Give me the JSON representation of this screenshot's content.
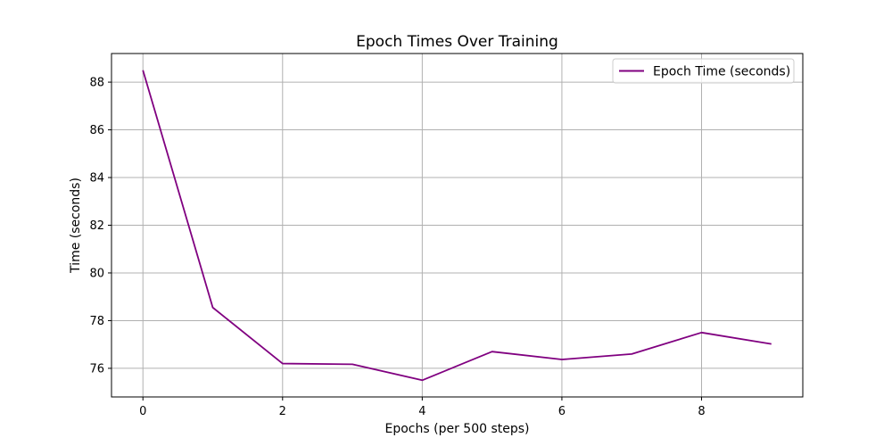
{
  "chart_data": {
    "type": "line",
    "title": "Epoch Times Over Training",
    "xlabel": "Epochs (per 500 steps)",
    "ylabel": "Time (seconds)",
    "xlim": [
      -0.45,
      9.45
    ],
    "ylim": [
      74.8,
      89.2
    ],
    "xticks": [
      0,
      2,
      4,
      6,
      8
    ],
    "yticks": [
      76,
      78,
      80,
      82,
      84,
      86,
      88
    ],
    "grid": true,
    "legend_position": "top-right",
    "series": [
      {
        "name": "Epoch Time (seconds)",
        "color": "#800080",
        "x": [
          0,
          1,
          2,
          3,
          4,
          5,
          6,
          7,
          8,
          9
        ],
        "y": [
          88.5,
          78.55,
          76.2,
          76.17,
          75.5,
          76.7,
          76.37,
          76.6,
          77.5,
          77.02
        ]
      }
    ]
  }
}
